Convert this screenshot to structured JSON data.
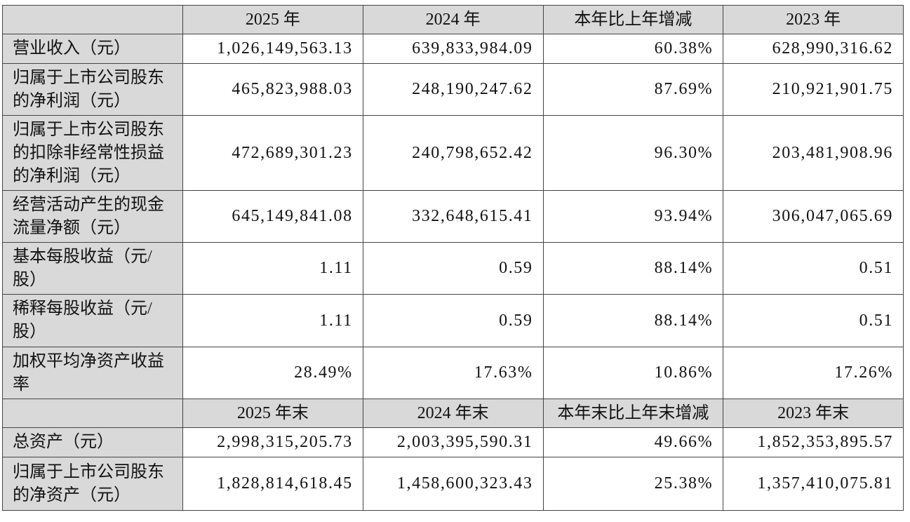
{
  "header": [
    "",
    "2025 年",
    "2024 年",
    "本年比上年增减",
    "2023 年"
  ],
  "rows": [
    {
      "label": "营业收入（元）",
      "values": [
        "1,026,149,563.13",
        "639,833,984.09",
        "60.38%",
        "628,990,316.62"
      ]
    },
    {
      "label": "归属于上市公司股东的净利润（元）",
      "values": [
        "465,823,988.03",
        "248,190,247.62",
        "87.69%",
        "210,921,901.75"
      ]
    },
    {
      "label": "归属于上市公司股东的扣除非经常性损益的净利润（元）",
      "values": [
        "472,689,301.23",
        "240,798,652.42",
        "96.30%",
        "203,481,908.96"
      ]
    },
    {
      "label": "经营活动产生的现金流量净额（元）",
      "values": [
        "645,149,841.08",
        "332,648,615.41",
        "93.94%",
        "306,047,065.69"
      ]
    },
    {
      "label": "基本每股收益（元/股）",
      "values": [
        "1.11",
        "0.59",
        "88.14%",
        "0.51"
      ]
    },
    {
      "label": "稀释每股收益（元/股）",
      "values": [
        "1.11",
        "0.59",
        "88.14%",
        "0.51"
      ]
    },
    {
      "label": "加权平均净资产收益率",
      "values": [
        "28.49%",
        "17.63%",
        "10.86%",
        "17.26%"
      ]
    }
  ],
  "header2": [
    "",
    "2025 年末",
    "2024 年末",
    "本年末比上年末增减",
    "2023 年末"
  ],
  "rows2": [
    {
      "label": "总资产（元）",
      "values": [
        "2,998,315,205.73",
        "2,003,395,590.31",
        "49.66%",
        "1,852,353,895.57"
      ]
    },
    {
      "label": "归属于上市公司股东的净资产（元）",
      "values": [
        "1,828,814,618.45",
        "1,458,600,323.43",
        "25.38%",
        "1,357,410,075.81"
      ]
    }
  ]
}
